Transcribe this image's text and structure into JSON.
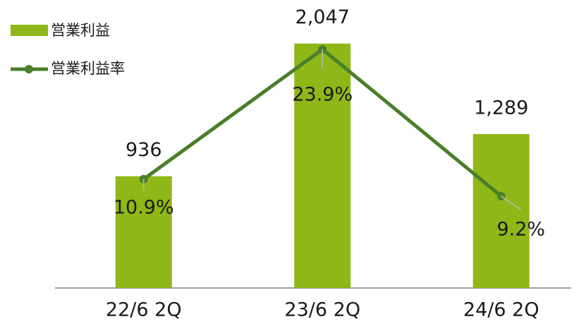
{
  "chart_data": {
    "type": "bar-line",
    "categories": [
      "22/6 2Q",
      "23/6 2Q",
      "24/6 2Q"
    ],
    "series": [
      {
        "name": "営業利益",
        "type": "bar",
        "color": "#8fb718",
        "values": [
          936,
          2047,
          1289
        ],
        "value_labels": [
          "936",
          "2,047",
          "1,289"
        ]
      },
      {
        "name": "営業利益率",
        "type": "line",
        "axis": "y2",
        "color": "#4a7f2a",
        "values": [
          10.9,
          23.9,
          9.2
        ],
        "value_labels": [
          "10.9%",
          "23.9%",
          "9.2%"
        ]
      }
    ],
    "ylim": [
      0,
      2400
    ],
    "y2lim": [
      0,
      28.7
    ],
    "legend": "top-left"
  }
}
